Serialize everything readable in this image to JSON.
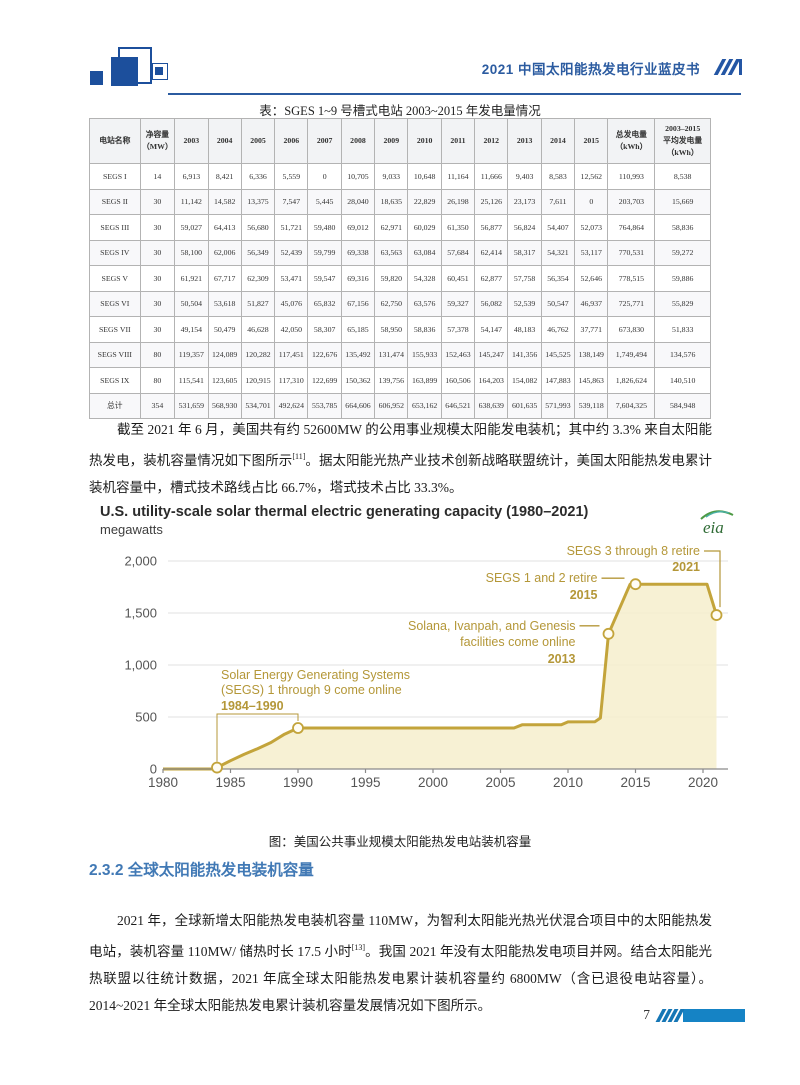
{
  "header": {
    "title": "2021 中国太阳能热发电行业蓝皮书"
  },
  "table": {
    "caption": "表：SGES 1~9 号槽式电站 2003~2015 年发电量情况",
    "col_headers": [
      "电站名称",
      "净容量\n（MW）",
      "2003",
      "2004",
      "2005",
      "2006",
      "2007",
      "2008",
      "2009",
      "2010",
      "2011",
      "2012",
      "2013",
      "2014",
      "2015",
      "总发电量\n（kWh）",
      "2003–2015\n平均发电量\n（kWh）"
    ],
    "rows": [
      {
        "name": "SEGS I",
        "values": [
          "14",
          "6,913",
          "8,421",
          "6,336",
          "5,559",
          "0",
          "10,705",
          "9,033",
          "10,648",
          "11,164",
          "11,666",
          "9,403",
          "8,583",
          "12,562",
          "110,993",
          "8,538"
        ]
      },
      {
        "name": "SEGS II",
        "values": [
          "30",
          "11,142",
          "14,582",
          "13,375",
          "7,547",
          "5,445",
          "28,040",
          "18,635",
          "22,829",
          "26,198",
          "25,126",
          "23,173",
          "7,611",
          "0",
          "203,703",
          "15,669"
        ]
      },
      {
        "name": "SEGS III",
        "values": [
          "30",
          "59,027",
          "64,413",
          "56,680",
          "51,721",
          "59,480",
          "69,012",
          "62,971",
          "60,029",
          "61,350",
          "56,877",
          "56,824",
          "54,407",
          "52,073",
          "764,864",
          "58,836"
        ]
      },
      {
        "name": "SEGS IV",
        "values": [
          "30",
          "58,100",
          "62,006",
          "56,349",
          "52,439",
          "59,799",
          "69,338",
          "63,563",
          "63,084",
          "57,684",
          "62,414",
          "58,317",
          "54,321",
          "53,117",
          "770,531",
          "59,272"
        ]
      },
      {
        "name": "SEGS V",
        "values": [
          "30",
          "61,921",
          "67,717",
          "62,309",
          "53,471",
          "59,547",
          "69,316",
          "59,820",
          "54,328",
          "60,451",
          "62,877",
          "57,758",
          "56,354",
          "52,646",
          "778,515",
          "59,886"
        ]
      },
      {
        "name": "SEGS VI",
        "values": [
          "30",
          "50,504",
          "53,618",
          "51,827",
          "45,076",
          "65,832",
          "67,156",
          "62,750",
          "63,576",
          "59,327",
          "56,082",
          "52,539",
          "50,547",
          "46,937",
          "725,771",
          "55,829"
        ]
      },
      {
        "name": "SEGS VII",
        "values": [
          "30",
          "49,154",
          "50,479",
          "46,628",
          "42,050",
          "58,307",
          "65,185",
          "58,950",
          "58,836",
          "57,378",
          "54,147",
          "48,183",
          "46,762",
          "37,771",
          "673,830",
          "51,833"
        ]
      },
      {
        "name": "SEGS VIII",
        "values": [
          "80",
          "119,357",
          "124,089",
          "120,282",
          "117,451",
          "122,676",
          "135,492",
          "131,474",
          "155,933",
          "152,463",
          "145,247",
          "141,356",
          "145,525",
          "138,149",
          "1,749,494",
          "134,576"
        ]
      },
      {
        "name": "SEGS IX",
        "values": [
          "80",
          "115,541",
          "123,605",
          "120,915",
          "117,310",
          "122,699",
          "150,362",
          "139,756",
          "163,899",
          "160,506",
          "164,203",
          "154,082",
          "147,883",
          "145,863",
          "1,826,624",
          "140,510"
        ]
      },
      {
        "name": "总计",
        "values": [
          "354",
          "531,659",
          "568,930",
          "534,701",
          "492,624",
          "553,785",
          "664,606",
          "606,952",
          "653,162",
          "646,521",
          "638,639",
          "601,635",
          "571,993",
          "539,118",
          "7,604,325",
          "584,948"
        ]
      }
    ]
  },
  "paragraph1": {
    "seg1": "截至 2021 年 6 月，美国共有约 52600MW 的公用事业规模太阳能发电装机；其中约 3.3% 来自太阳能热发电，装机容量情况如下图所示",
    "sup": "[11]",
    "seg2": "。据太阳能光热产业技术创新战略联盟统计，美国太阳能热发电累计装机容量中，槽式技术路线占比 66.7%，塔式技术占比 33.3%。"
  },
  "chart_data": {
    "type": "area",
    "title": "U.S. utility-scale solar thermal electric generating capacity (1980–2021)",
    "subtitle": "megawatts",
    "logo_text": "eia",
    "x_range": [
      1980,
      2021
    ],
    "y_range": [
      0,
      2000
    ],
    "grid": true,
    "xticks": [
      1980,
      1985,
      1990,
      1995,
      2000,
      2005,
      2010,
      2015,
      2020
    ],
    "yticks": [
      {
        "label": "0",
        "value": 0
      },
      {
        "label": "500",
        "value": 500
      },
      {
        "label": "1,000",
        "value": 1000
      },
      {
        "label": "1,500",
        "value": 1500
      },
      {
        "label": "2,000",
        "value": 2000
      }
    ],
    "series": [
      [
        1980,
        0
      ],
      [
        1983.7,
        0
      ],
      [
        1984,
        14
      ],
      [
        1985,
        80
      ],
      [
        1986,
        140
      ],
      [
        1987,
        195
      ],
      [
        1988,
        255
      ],
      [
        1989,
        335
      ],
      [
        1990,
        394
      ],
      [
        2006,
        394
      ],
      [
        2006.6,
        425
      ],
      [
        2009.5,
        425
      ],
      [
        2010,
        453
      ],
      [
        2012,
        455
      ],
      [
        2012.4,
        490
      ],
      [
        2013,
        1300
      ],
      [
        2014.6,
        1777
      ],
      [
        2020.3,
        1777
      ],
      [
        2021,
        1480
      ]
    ],
    "markers": [
      [
        1984,
        14
      ],
      [
        1990,
        394
      ],
      [
        2013,
        1300
      ],
      [
        2015,
        1777
      ],
      [
        2021,
        1480
      ]
    ],
    "line_color": "#c3a43b",
    "fill_color": "#f6eecd",
    "annotation_color": "#b49738",
    "annotations": [
      {
        "id": "segs-online",
        "lines": [
          "Solar Energy Generating Systems",
          "(SEGS) 1 through 9 come online"
        ],
        "year_label": "1984–1990",
        "type": "bracket",
        "from": [
          1984,
          14
        ],
        "to": [
          1990,
          394
        ]
      },
      {
        "id": "solana",
        "lines": [
          "Solana, Ivanpah, and Genesis",
          "facilities come online"
        ],
        "year_label": "2013",
        "anchor": [
          2013,
          1300
        ],
        "align": "right",
        "connector": "dash"
      },
      {
        "id": "segs12-retire",
        "lines": [
          "SEGS 1 and 2 retire"
        ],
        "year_label": "2015",
        "anchor": [
          2015,
          1777
        ],
        "align": "right",
        "connector": "dash"
      },
      {
        "id": "segs38-retire",
        "lines": [
          "SEGS 3 through 8 retire"
        ],
        "year_label": "2021",
        "anchor": [
          2021,
          1480
        ],
        "align": "right",
        "connector": "elbow"
      }
    ]
  },
  "figure_caption": "图：美国公共事业规模太阳能热发电站装机容量",
  "section": {
    "heading": "2.3.2 全球太阳能热发电装机容量"
  },
  "paragraph2": {
    "seg1": "2021 年，全球新增太阳能热发电装机容量 110MW，为智利太阳能光热光伏混合项目中的太阳能热发电站，装机容量 110MW/ 储热时长 17.5 小时",
    "sup": "[13]",
    "seg2": "。我国 2021 年没有太阳能热发电项目并网。结合太阳能光热联盟以往统计数据，2021 年底全球太阳能热发电累计装机容量约 6800MW（含已退役电站容量）。2014~2021 年全球太阳能热发电累计装机容量发展情况如下图所示。"
  },
  "footer": {
    "page_number": "7"
  }
}
